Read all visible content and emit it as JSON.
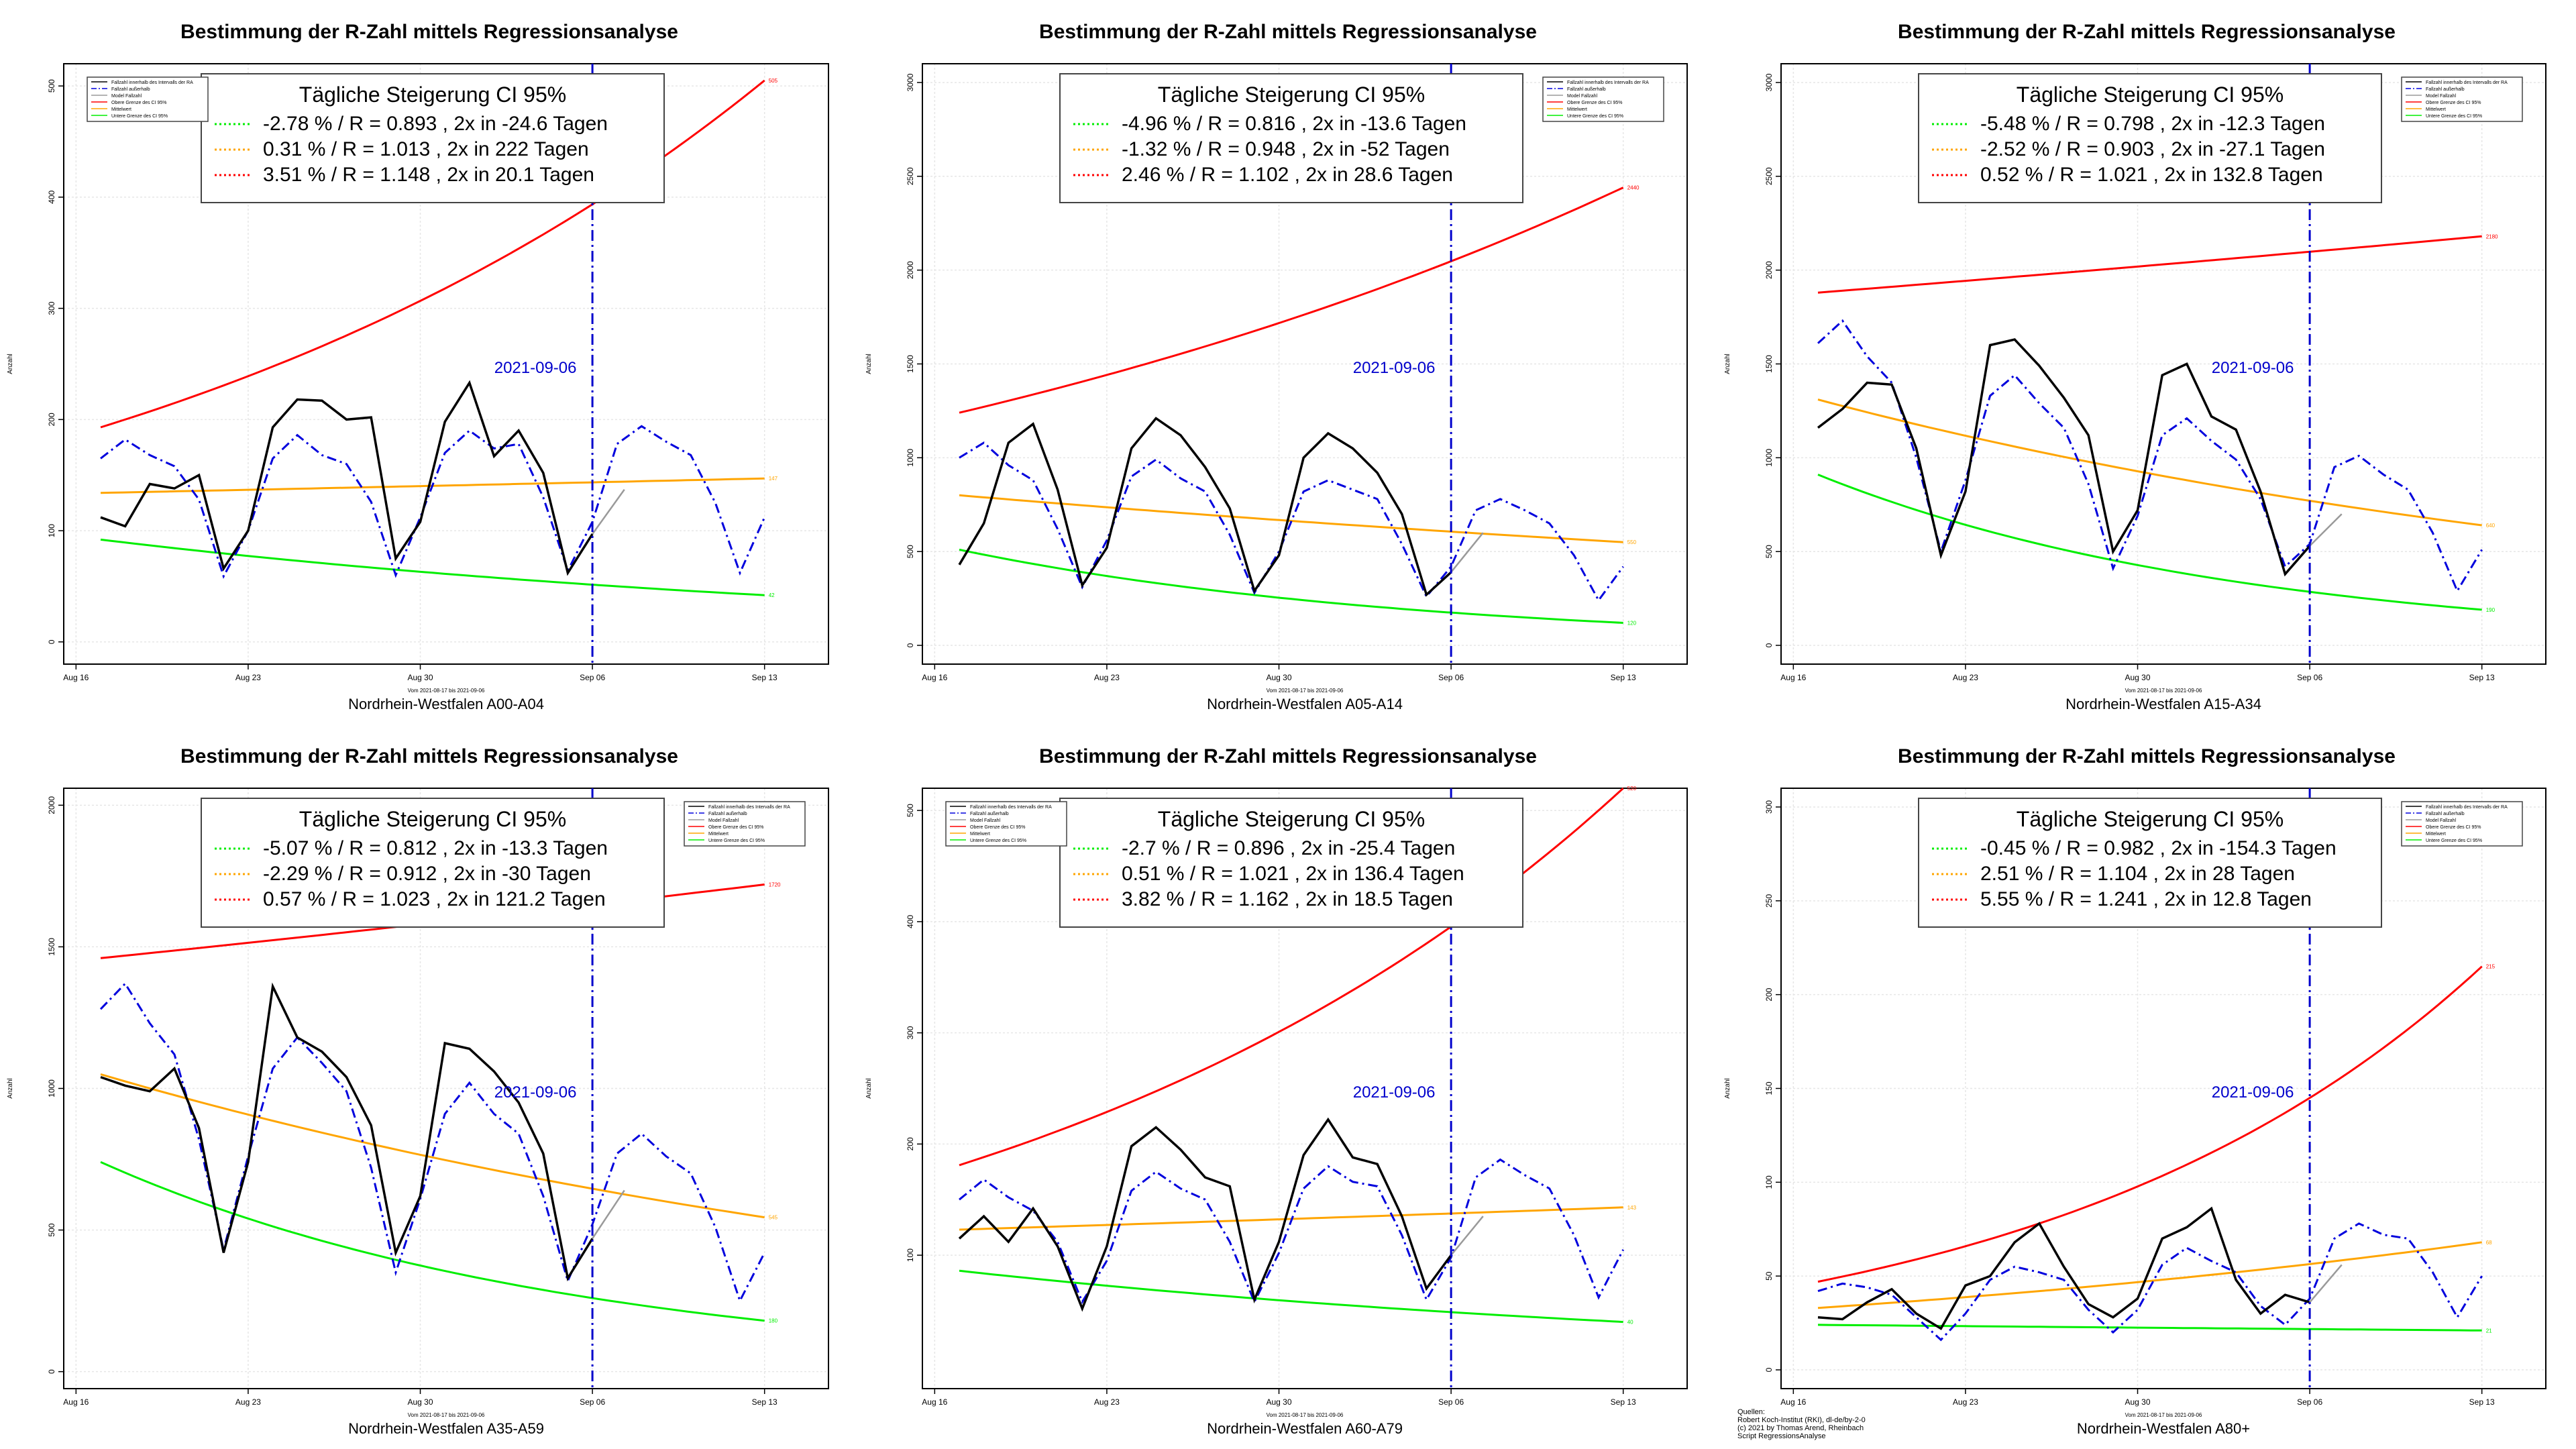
{
  "page": {
    "background": "#ffffff"
  },
  "colors": {
    "fallzahl": "#000000",
    "fallzahl_auto": "#0000dd",
    "modell": "#9a9a9a",
    "upper": "#ff0000",
    "mean": "#ffa500",
    "lower": "#00ee00",
    "marker": "#0000cc",
    "grid": "#e6e6e6"
  },
  "legend_items": [
    "Fallzahl innerhalb des Intervalls der RA",
    "Fallzahl außerhalb",
    "Model Fallzahl",
    "Obere Grenze des CI 95%",
    "Mittelwert",
    "Untere Grenze des CI 95%"
  ],
  "source_note": [
    "Quellen:",
    "Robert Koch-Institut (RKI), dl-de/by-2-0",
    "(c) 2021 by Thomas Arend, Rheinbach",
    "Script RegressionsAnalyse"
  ],
  "chart_data": [
    {
      "type": "line",
      "title": "Bestimmung der R-Zahl mittels Regressionsanalyse",
      "xlabel": "Nordrhein-Westfalen A00-A04",
      "subxlabel": "Vom 2021-08-17 bis 2021-09-06",
      "ylabel": "Anzahl",
      "x_ticks": [
        "Aug 16",
        "Aug 23",
        "Aug 30",
        "Sep 06",
        "Sep 13"
      ],
      "y_ticks": [
        0,
        100,
        200,
        300,
        400,
        500
      ],
      "ylim": [
        -20,
        520
      ],
      "marker_label": "2021-09-06",
      "ci_title": "Tägliche Steigerung CI  95%",
      "ci_lines": [
        "-2.78 % / R = 0.893 , 2x in -24.6 Tagen",
        "0.31 % / R = 1.013 , 2x in 222 Tagen",
        "3.51 % / R = 1.148 , 2x in 20.1 Tagen"
      ],
      "ci_box_pos": "top-center",
      "legend_pos": "top-left",
      "series_black": [
        112,
        104,
        142,
        138,
        150,
        66,
        100,
        193,
        218,
        217,
        200,
        202,
        75,
        108,
        198,
        233,
        167,
        190,
        152,
        62,
        97
      ],
      "series_blue": [
        165,
        182,
        168,
        158,
        128,
        59,
        100,
        165,
        186,
        168,
        160,
        126,
        60,
        112,
        170,
        190,
        174,
        178,
        130,
        64,
        108,
        178,
        194,
        180,
        168,
        125,
        62,
        112
      ],
      "model_end": 137,
      "upper": [
        193,
        505
      ],
      "mean": [
        134,
        147
      ],
      "lower": [
        92,
        42
      ],
      "end_labels": [
        "505",
        "147",
        "42"
      ]
    },
    {
      "type": "line",
      "title": "Bestimmung der R-Zahl mittels Regressionsanalyse",
      "xlabel": "Nordrhein-Westfalen A05-A14",
      "subxlabel": "Vom 2021-08-17 bis 2021-09-06",
      "ylabel": "Anzahl",
      "x_ticks": [
        "Aug 16",
        "Aug 23",
        "Aug 30",
        "Sep 06",
        "Sep 13"
      ],
      "y_ticks": [
        0,
        500,
        1000,
        1500,
        2000,
        2500,
        3000
      ],
      "ylim": [
        -100,
        3100
      ],
      "marker_label": "2021-09-06",
      "ci_title": "Tägliche Steigerung CI  95%",
      "ci_lines": [
        "-4.96 % / R = 0.816 , 2x in -13.6 Tagen",
        "-1.32 % / R = 0.948 , 2x in -52 Tagen",
        "2.46 % / R = 1.102 , 2x in 28.6 Tagen"
      ],
      "ci_box_pos": "top-center",
      "legend_pos": "top-right",
      "series_black": [
        430,
        650,
        1080,
        1180,
        830,
        320,
        520,
        1050,
        1210,
        1120,
        950,
        730,
        290,
        480,
        1000,
        1130,
        1050,
        920,
        700,
        270,
        390
      ],
      "series_blue": [
        1000,
        1080,
        960,
        880,
        620,
        310,
        560,
        900,
        990,
        890,
        820,
        590,
        280,
        500,
        820,
        880,
        830,
        780,
        540,
        260,
        420,
        720,
        780,
        720,
        650,
        480,
        240,
        420
      ],
      "model_end": 600,
      "upper": [
        1240,
        2440
      ],
      "mean": [
        800,
        550
      ],
      "lower": [
        510,
        120
      ],
      "end_labels": [
        "2440",
        "550",
        "120"
      ]
    },
    {
      "type": "line",
      "title": "Bestimmung der R-Zahl mittels Regressionsanalyse",
      "xlabel": "Nordrhein-Westfalen A15-A34",
      "subxlabel": "Vom 2021-08-17 bis 2021-09-06",
      "ylabel": "Anzahl",
      "x_ticks": [
        "Aug 16",
        "Aug 23",
        "Aug 30",
        "Sep 06",
        "Sep 13"
      ],
      "y_ticks": [
        0,
        500,
        1000,
        1500,
        2000,
        2500,
        3000
      ],
      "ylim": [
        -100,
        3100
      ],
      "marker_label": "2021-09-06",
      "ci_title": "Tägliche Steigerung CI  95%",
      "ci_lines": [
        "-5.48 % / R = 0.798 , 2x in -12.3 Tagen",
        "-2.52 % / R = 0.903 , 2x in -27.1 Tagen",
        "0.52 % / R = 1.021 , 2x in 132.8 Tagen"
      ],
      "ci_box_pos": "top-center",
      "legend_pos": "top-right",
      "series_black": [
        1160,
        1260,
        1400,
        1390,
        1050,
        480,
        820,
        1600,
        1630,
        1490,
        1320,
        1120,
        500,
        720,
        1440,
        1500,
        1220,
        1150,
        820,
        380,
        530
      ],
      "series_blue": [
        1610,
        1730,
        1540,
        1400,
        1000,
        500,
        880,
        1330,
        1440,
        1290,
        1160,
        860,
        410,
        690,
        1120,
        1210,
        1090,
        990,
        780,
        420,
        540,
        950,
        1010,
        910,
        830,
        600,
        290,
        510
      ],
      "model_end": 700,
      "upper": [
        1880,
        2180
      ],
      "mean": [
        1310,
        640
      ],
      "lower": [
        910,
        190
      ],
      "end_labels": [
        "2180",
        "640",
        "190"
      ]
    },
    {
      "type": "line",
      "title": "Bestimmung der R-Zahl mittels Regressionsanalyse",
      "xlabel": "Nordrhein-Westfalen A35-A59",
      "subxlabel": "Vom 2021-08-17 bis 2021-09-06",
      "ylabel": "Anzahl",
      "x_ticks": [
        "Aug 16",
        "Aug 23",
        "Aug 30",
        "Sep 06",
        "Sep 13"
      ],
      "y_ticks": [
        0,
        500,
        1000,
        1500,
        2000
      ],
      "ylim": [
        -60,
        2060
      ],
      "marker_label": "2021-09-06",
      "ci_title": "Tägliche Steigerung CI  95%",
      "ci_lines": [
        "-5.07 % / R = 0.812 , 2x in -13.3 Tagen",
        "-2.29 % / R = 0.912 , 2x in -30 Tagen",
        "0.57 % / R = 1.023 , 2x in 121.2 Tagen"
      ],
      "ci_box_pos": "top-center",
      "legend_pos": "top-right",
      "series_black": [
        1040,
        1010,
        990,
        1070,
        860,
        420,
        740,
        1360,
        1180,
        1130,
        1040,
        870,
        420,
        620,
        1160,
        1140,
        1060,
        950,
        770,
        330,
        470
      ],
      "series_blue": [
        1280,
        1370,
        1230,
        1120,
        820,
        430,
        760,
        1070,
        1180,
        1090,
        990,
        720,
        350,
        610,
        910,
        1020,
        910,
        840,
        620,
        320,
        520,
        770,
        840,
        760,
        700,
        510,
        250,
        420
      ],
      "model_end": 640,
      "upper": [
        1460,
        1720
      ],
      "mean": [
        1050,
        545
      ],
      "lower": [
        740,
        180
      ],
      "end_labels": [
        "1720",
        "545",
        "180"
      ]
    },
    {
      "type": "line",
      "title": "Bestimmung der R-Zahl mittels Regressionsanalyse",
      "xlabel": "Nordrhein-Westfalen A60-A79",
      "subxlabel": "Vom 2021-08-17 bis 2021-09-06",
      "ylabel": "Anzahl",
      "x_ticks": [
        "Aug 16",
        "Aug 23",
        "Aug 30",
        "Sep 06",
        "Sep 13"
      ],
      "y_ticks": [
        100,
        200,
        300,
        400,
        500
      ],
      "ylim": [
        -20,
        520
      ],
      "marker_label": "2021-09-06",
      "ci_title": "Tägliche Steigerung CI  95%",
      "ci_lines": [
        "-2.7 % / R = 0.896 , 2x in -25.4 Tagen",
        "0.51 % / R = 1.021 , 2x in 136.4 Tagen",
        "3.82 % / R = 1.162 , 2x in 18.5 Tagen"
      ],
      "ci_box_pos": "top-center",
      "legend_pos": "top-left",
      "series_black": [
        115,
        135,
        112,
        142,
        108,
        52,
        108,
        198,
        215,
        195,
        170,
        162,
        60,
        112,
        190,
        222,
        188,
        182,
        135,
        70,
        100
      ],
      "series_blue": [
        150,
        168,
        152,
        140,
        112,
        58,
        95,
        158,
        175,
        160,
        150,
        112,
        58,
        102,
        160,
        180,
        166,
        162,
        118,
        60,
        98,
        170,
        186,
        172,
        160,
        118,
        62,
        105
      ],
      "model_end": 135,
      "upper": [
        181,
        520
      ],
      "mean": [
        123,
        143
      ],
      "lower": [
        86,
        40
      ],
      "end_labels": [
        "520",
        "143",
        "40"
      ]
    },
    {
      "type": "line",
      "title": "Bestimmung der R-Zahl mittels Regressionsanalyse",
      "xlabel": "Nordrhein-Westfalen A80+",
      "subxlabel": "Vom 2021-08-17 bis 2021-09-06",
      "ylabel": "Anzahl",
      "x_ticks": [
        "Aug 16",
        "Aug 23",
        "Aug 30",
        "Sep 06",
        "Sep 13"
      ],
      "y_ticks": [
        0,
        50,
        100,
        150,
        200,
        250,
        300
      ],
      "ylim": [
        -10,
        310
      ],
      "marker_label": "2021-09-06",
      "ci_title": "Tägliche Steigerung CI  95%",
      "ci_lines": [
        "-0.45 % / R = 0.982 , 2x in -154.3 Tagen",
        "2.51 % / R = 1.104 , 2x in 28 Tagen",
        "5.55 % / R = 1.241 , 2x in 12.8 Tagen"
      ],
      "ci_box_pos": "top-center",
      "legend_pos": "top-right",
      "series_black": [
        28,
        27,
        36,
        43,
        30,
        22,
        45,
        50,
        68,
        78,
        55,
        35,
        28,
        38,
        70,
        76,
        86,
        48,
        30,
        40,
        36
      ],
      "series_blue": [
        42,
        46,
        44,
        40,
        28,
        16,
        30,
        48,
        55,
        52,
        48,
        32,
        20,
        32,
        56,
        65,
        58,
        52,
        34,
        24,
        38,
        70,
        78,
        72,
        70,
        52,
        28,
        50
      ],
      "model_end": 56,
      "upper": [
        47,
        215
      ],
      "mean": [
        33,
        68
      ],
      "lower": [
        24,
        21
      ],
      "end_labels": [
        "215",
        "68",
        "21"
      ]
    }
  ]
}
